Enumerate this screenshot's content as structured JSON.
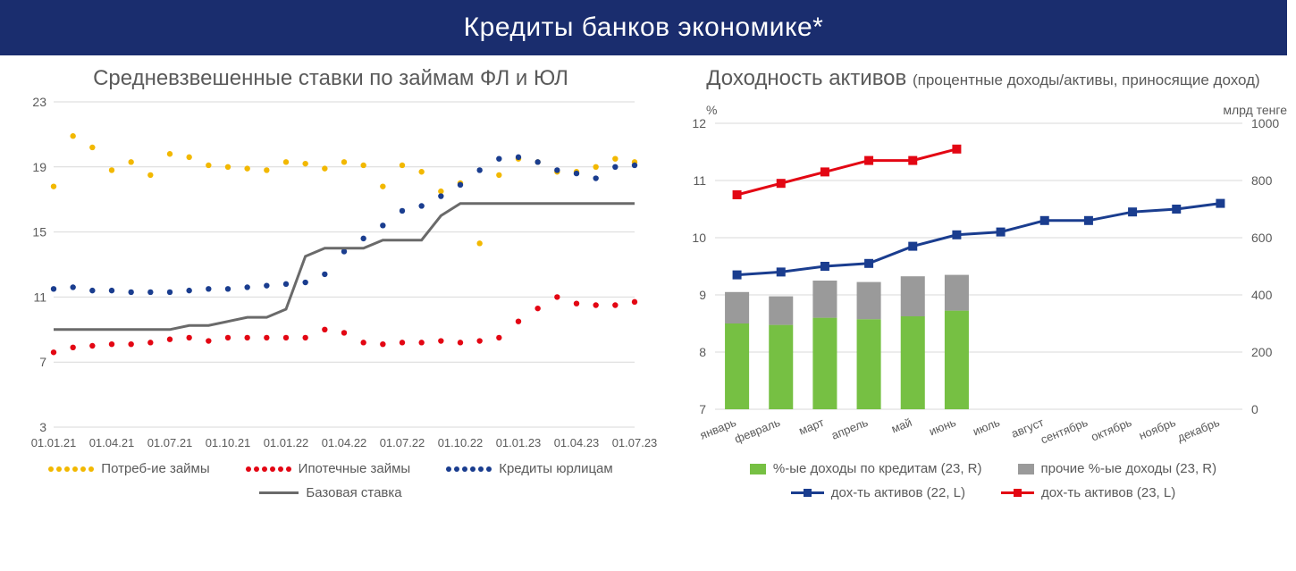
{
  "header": {
    "title": "Кредиты банков экономике*"
  },
  "colors": {
    "header_bg": "#1a2d6e",
    "yellow": "#f2b800",
    "red": "#e30613",
    "blue": "#1a3d8f",
    "gray": "#6a6a6a",
    "green_bar": "#76c043",
    "gray_bar": "#9a9a9a",
    "grid": "#d9d9d9",
    "text": "#5a5a5a"
  },
  "left": {
    "title": "Средневзвешенные ставки по займам ФЛ и ЮЛ",
    "y": {
      "min": 3,
      "max": 23,
      "ticks": [
        3,
        7,
        11,
        15,
        19,
        23
      ]
    },
    "x_labels": [
      "01.01.21",
      "01.04.21",
      "01.07.21",
      "01.10.21",
      "01.01.22",
      "01.04.22",
      "01.07.22",
      "01.10.22",
      "01.01.23",
      "01.04.23",
      "01.07.23"
    ],
    "n_points": 31,
    "series": {
      "consumer": {
        "label": "Потреб-ие займы",
        "color": "#f2b800",
        "style": "dotted",
        "values": [
          17.8,
          20.9,
          20.2,
          18.8,
          19.3,
          18.5,
          19.8,
          19.6,
          19.1,
          19.0,
          18.9,
          18.8,
          19.3,
          19.2,
          18.9,
          19.3,
          19.1,
          17.8,
          19.1,
          18.7,
          17.5,
          18.0,
          14.3,
          18.5,
          19.5,
          19.3,
          18.7,
          18.7,
          19.0,
          19.5,
          19.3
        ]
      },
      "mortgage": {
        "label": "Ипотечные займы",
        "color": "#e30613",
        "style": "dotted",
        "values": [
          7.6,
          7.9,
          8.0,
          8.1,
          8.1,
          8.2,
          8.4,
          8.5,
          8.3,
          8.5,
          8.5,
          8.5,
          8.5,
          8.5,
          9.0,
          8.8,
          8.2,
          8.1,
          8.2,
          8.2,
          8.3,
          8.2,
          8.3,
          8.5,
          9.5,
          10.3,
          11.0,
          10.6,
          10.5,
          10.5,
          10.7
        ]
      },
      "legal": {
        "label": "Кредиты юрлицам",
        "color": "#1a3d8f",
        "style": "dotted",
        "values": [
          11.5,
          11.6,
          11.4,
          11.4,
          11.3,
          11.3,
          11.3,
          11.4,
          11.5,
          11.5,
          11.6,
          11.7,
          11.8,
          11.9,
          12.4,
          13.8,
          14.6,
          15.4,
          16.3,
          16.6,
          17.2,
          17.9,
          18.8,
          19.5,
          19.6,
          19.3,
          18.8,
          18.6,
          18.3,
          19.0,
          19.1
        ]
      },
      "base_rate": {
        "label": "Базовая ставка",
        "color": "#6a6a6a",
        "style": "solid",
        "values": [
          9.0,
          9.0,
          9.0,
          9.0,
          9.0,
          9.0,
          9.0,
          9.25,
          9.25,
          9.5,
          9.75,
          9.75,
          10.25,
          13.5,
          14.0,
          14.0,
          14.0,
          14.5,
          14.5,
          14.5,
          16.0,
          16.75,
          16.75,
          16.75,
          16.75,
          16.75,
          16.75,
          16.75,
          16.75,
          16.75,
          16.75
        ]
      }
    },
    "legend_order": [
      "consumer",
      "mortgage",
      "legal",
      "base_rate"
    ]
  },
  "right": {
    "title_main": "Доходность активов",
    "title_sub": "(процентные доходы/активы, приносящие доход)",
    "y_left": {
      "label": "%",
      "min": 7,
      "max": 12,
      "ticks": [
        7,
        8,
        9,
        10,
        11,
        12
      ]
    },
    "y_right": {
      "label": "млрд тенге",
      "min": 0,
      "max": 1000,
      "ticks": [
        0,
        200,
        400,
        600,
        800,
        1000
      ]
    },
    "x_labels": [
      "январь",
      "февраль",
      "март",
      "апрель",
      "май",
      "июнь",
      "июль",
      "август",
      "сентябрь",
      "октябрь",
      "ноябрь",
      "декабрь"
    ],
    "bars": {
      "credit_income": {
        "label": "%-ые доходы по кредитам (23, R)",
        "color": "#76c043",
        "values": [
          300,
          295,
          320,
          315,
          325,
          345,
          null,
          null,
          null,
          null,
          null,
          null
        ]
      },
      "other_income": {
        "label": "прочие %-ые доходы (23, R)",
        "color": "#9a9a9a",
        "values": [
          110,
          100,
          130,
          130,
          140,
          125,
          null,
          null,
          null,
          null,
          null,
          null
        ]
      }
    },
    "lines": {
      "return22": {
        "label": "дох-ть активов (22, L)",
        "color": "#1a3d8f",
        "values": [
          9.35,
          9.4,
          9.5,
          9.55,
          9.85,
          10.05,
          10.1,
          10.3,
          10.3,
          10.45,
          10.5,
          10.6
        ]
      },
      "return23": {
        "label": "дох-ть активов (23, L)",
        "color": "#e30613",
        "values": [
          10.75,
          10.95,
          11.15,
          11.35,
          11.35,
          11.55,
          null,
          null,
          null,
          null,
          null,
          null
        ]
      }
    },
    "legend_order": [
      "credit_income",
      "other_income",
      "return22",
      "return23"
    ]
  }
}
